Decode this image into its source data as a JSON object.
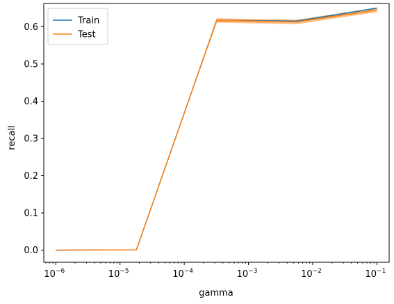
{
  "chart_data": {
    "type": "line",
    "xlabel": "gamma",
    "ylabel": "recall",
    "x_scale": "log",
    "xlim": [
      6.5e-07,
      0.155
    ],
    "ylim": [
      -0.0325,
      0.6625
    ],
    "x_ticks": [
      {
        "value": 1e-06,
        "base": "10",
        "exp": "−6"
      },
      {
        "value": 1e-05,
        "base": "10",
        "exp": "−5"
      },
      {
        "value": 0.0001,
        "base": "10",
        "exp": "−4"
      },
      {
        "value": 0.001,
        "base": "10",
        "exp": "−3"
      },
      {
        "value": 0.01,
        "base": "10",
        "exp": "−2"
      },
      {
        "value": 0.1,
        "base": "10",
        "exp": "−1"
      }
    ],
    "y_ticks": [
      "0.0",
      "0.1",
      "0.2",
      "0.3",
      "0.4",
      "0.5",
      "0.6"
    ],
    "grid": false,
    "legend_position": "top-left",
    "x": [
      1e-06,
      1.8e-05,
      0.00032,
      0.0056,
      0.1
    ],
    "series": [
      {
        "name": "Train",
        "color": "#1f77b4",
        "values": [
          0.0,
          0.001,
          0.617,
          0.615,
          0.65
        ],
        "band_lower": [
          0.0,
          0.001,
          0.615,
          0.613,
          0.648
        ],
        "band_upper": [
          0.0,
          0.001,
          0.619,
          0.617,
          0.652
        ]
      },
      {
        "name": "Test",
        "color": "#ff7f0e",
        "values": [
          0.0,
          0.001,
          0.617,
          0.613,
          0.645
        ],
        "band_lower": [
          0.0,
          0.0,
          0.611,
          0.607,
          0.639
        ],
        "band_upper": [
          0.001,
          0.002,
          0.623,
          0.619,
          0.651
        ]
      }
    ]
  }
}
